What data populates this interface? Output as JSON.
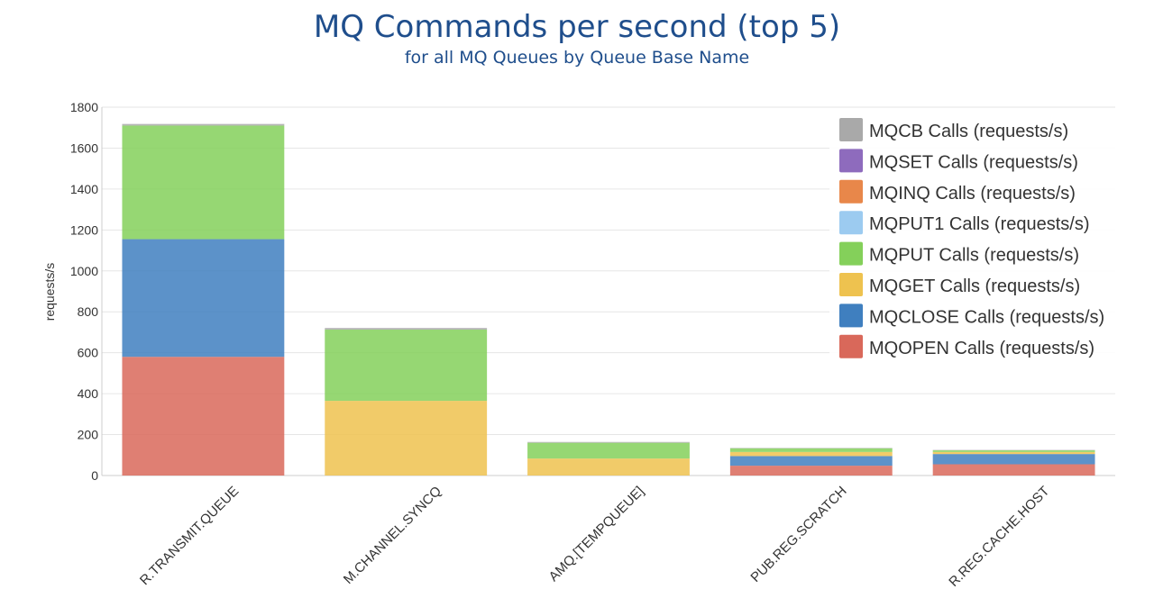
{
  "chart_data": {
    "type": "bar",
    "stacked": true,
    "title": "MQ Commands per second (top 5)",
    "subtitle": "for all MQ Queues by Queue Base Name",
    "ylabel": "requests/s",
    "ylim": [
      0,
      1800
    ],
    "yticks": [
      0,
      200,
      400,
      600,
      800,
      1000,
      1200,
      1400,
      1600,
      1800
    ],
    "grid": true,
    "legend_position": "top-right",
    "categories": [
      "R.TRANSMIT.QUEUE",
      "M.CHANNEL.SYNCQ",
      "AMQ.[TEMPQUEUE]",
      "PUB.REG.SCRATCH",
      "R.REG.CACHE.HOST"
    ],
    "series": [
      {
        "name": "MQOPEN Calls (requests/s)",
        "color": "#d9685a",
        "values": [
          580,
          0,
          0,
          48,
          55
        ]
      },
      {
        "name": "MQCLOSE Calls (requests/s)",
        "color": "#3f7fbf",
        "values": [
          575,
          0,
          0,
          47,
          50
        ]
      },
      {
        "name": "MQGET Calls (requests/s)",
        "color": "#eec24f",
        "values": [
          0,
          365,
          83,
          20,
          10
        ]
      },
      {
        "name": "MQPUT Calls (requests/s)",
        "color": "#84d05a",
        "values": [
          555,
          348,
          77,
          18,
          8
        ]
      },
      {
        "name": "MQPUT1 Calls (requests/s)",
        "color": "#9ccbf0",
        "values": [
          0,
          0,
          0,
          0,
          0
        ]
      },
      {
        "name": "MQINQ Calls (requests/s)",
        "color": "#e8874a",
        "values": [
          0,
          0,
          0,
          0,
          0
        ]
      },
      {
        "name": "MQSET Calls (requests/s)",
        "color": "#8e6bbd",
        "values": [
          0,
          0,
          0,
          0,
          0
        ]
      },
      {
        "name": "MQCB Calls (requests/s)",
        "color": "#a9a9a9",
        "values": [
          8,
          8,
          4,
          2,
          2
        ]
      }
    ]
  }
}
